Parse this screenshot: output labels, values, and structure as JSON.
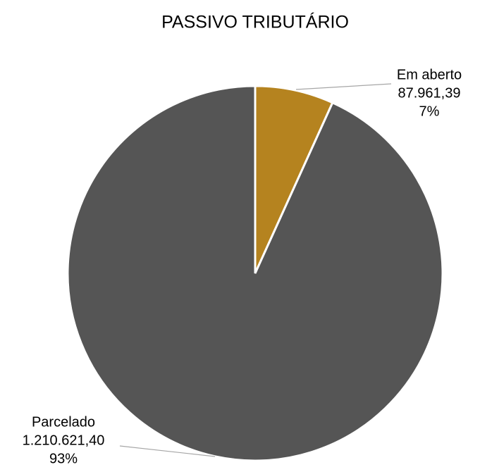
{
  "chart_data": {
    "type": "pie",
    "title": "PASSIVO TRIBUTÁRIO",
    "categories": [
      "Em aberto",
      "Parcelado"
    ],
    "values": [
      87961.39,
      1210621.4
    ],
    "value_labels": [
      "87.961,39",
      "1.210.621,40"
    ],
    "percentages": [
      7,
      93
    ],
    "percentage_labels": [
      "7%",
      "93%"
    ],
    "colors": [
      "#b5831f",
      "#555555"
    ]
  }
}
